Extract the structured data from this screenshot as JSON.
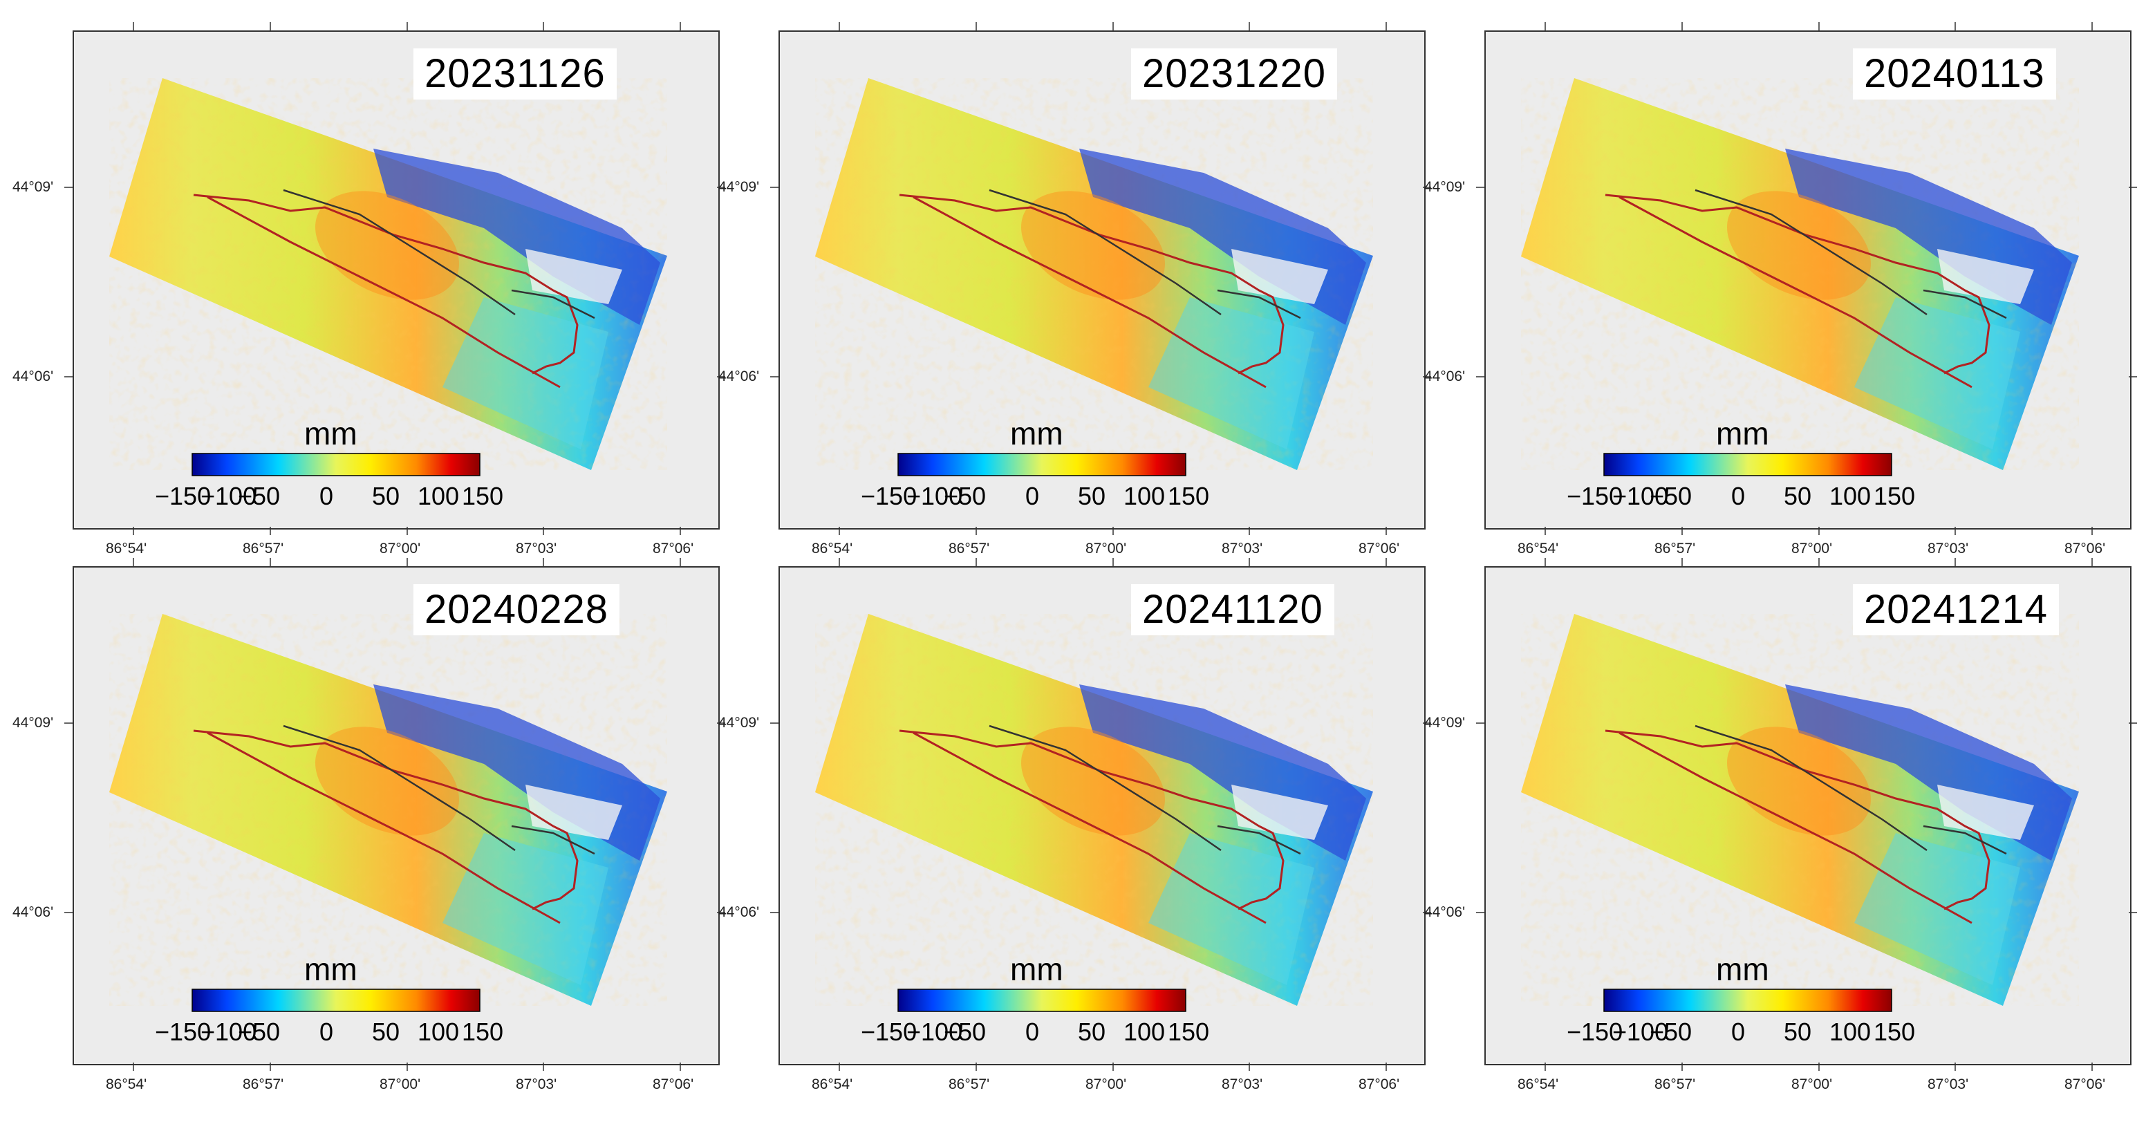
{
  "figure": {
    "panels": [
      {
        "date": "20231126"
      },
      {
        "date": "20231220"
      },
      {
        "date": "20240113"
      },
      {
        "date": "20240228"
      },
      {
        "date": "20241120"
      },
      {
        "date": "20241214"
      }
    ],
    "colorbar": {
      "unit": "mm",
      "ticks": [
        "−150",
        "−100",
        "−50",
        "0",
        "50",
        "100",
        "150"
      ],
      "range": [
        -150,
        150
      ]
    },
    "x_ticks": [
      "86°54'",
      "86°57'",
      "87°00'",
      "87°03'",
      "87°06'"
    ],
    "y_ticks": [
      "44°09'",
      "44°06'"
    ],
    "colors": {
      "frame": "#333333",
      "hillshade": "#ececec",
      "fault_red": "#b22222",
      "fault_dark": "#333333"
    }
  }
}
